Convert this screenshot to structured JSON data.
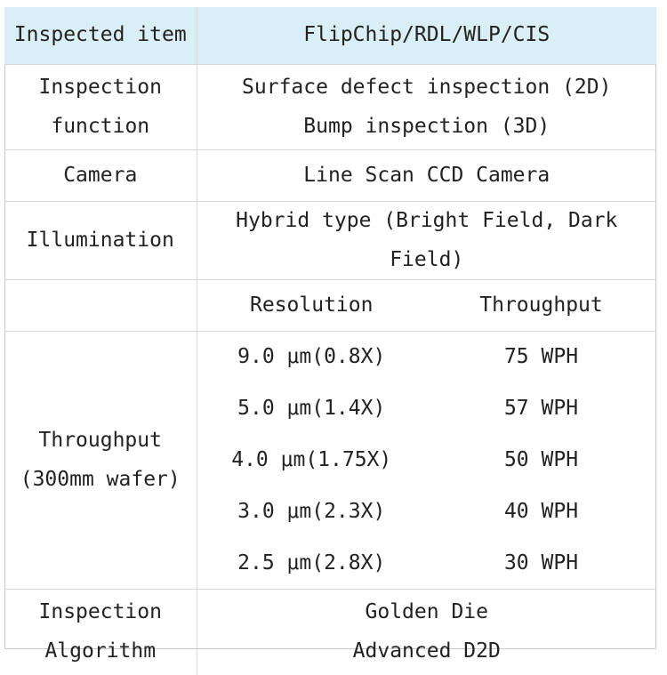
{
  "table": {
    "header": {
      "label": "Inspected item",
      "value": "FlipChip/RDL/WLP/CIS"
    },
    "inspection_function": {
      "label_lines": [
        "Inspection",
        "function"
      ],
      "value_lines": [
        "Surface defect inspection (2D)",
        "Bump inspection (3D)"
      ]
    },
    "camera": {
      "label": "Camera",
      "value": "Line Scan CCD Camera"
    },
    "illumination": {
      "label": "Illumination",
      "value": "Hybrid type (Bright Field, Dark Field)"
    },
    "throughput": {
      "label_lines": [
        "Throughput",
        "(300mm wafer)"
      ],
      "columns": {
        "resolution": "Resolution",
        "throughput": "Throughput"
      },
      "rows": [
        {
          "resolution": "9.0 μm(0.8X)",
          "throughput": "75 WPH"
        },
        {
          "resolution": "5.0 μm(1.4X)",
          "throughput": "57 WPH"
        },
        {
          "resolution": "4.0 μm(1.75X)",
          "throughput": "50 WPH"
        },
        {
          "resolution": "3.0 μm(2.3X)",
          "throughput": "40 WPH"
        },
        {
          "resolution": "2.5 μm(2.8X)",
          "throughput": "30 WPH"
        }
      ]
    },
    "algorithm": {
      "label_lines": [
        "Inspection",
        "Algorithm"
      ],
      "value_lines": [
        "Golden Die",
        "Advanced D2D"
      ]
    }
  },
  "colors": {
    "header_background": "#d9eef5",
    "grid_line": "#d8d8d8",
    "text": "#222222"
  }
}
